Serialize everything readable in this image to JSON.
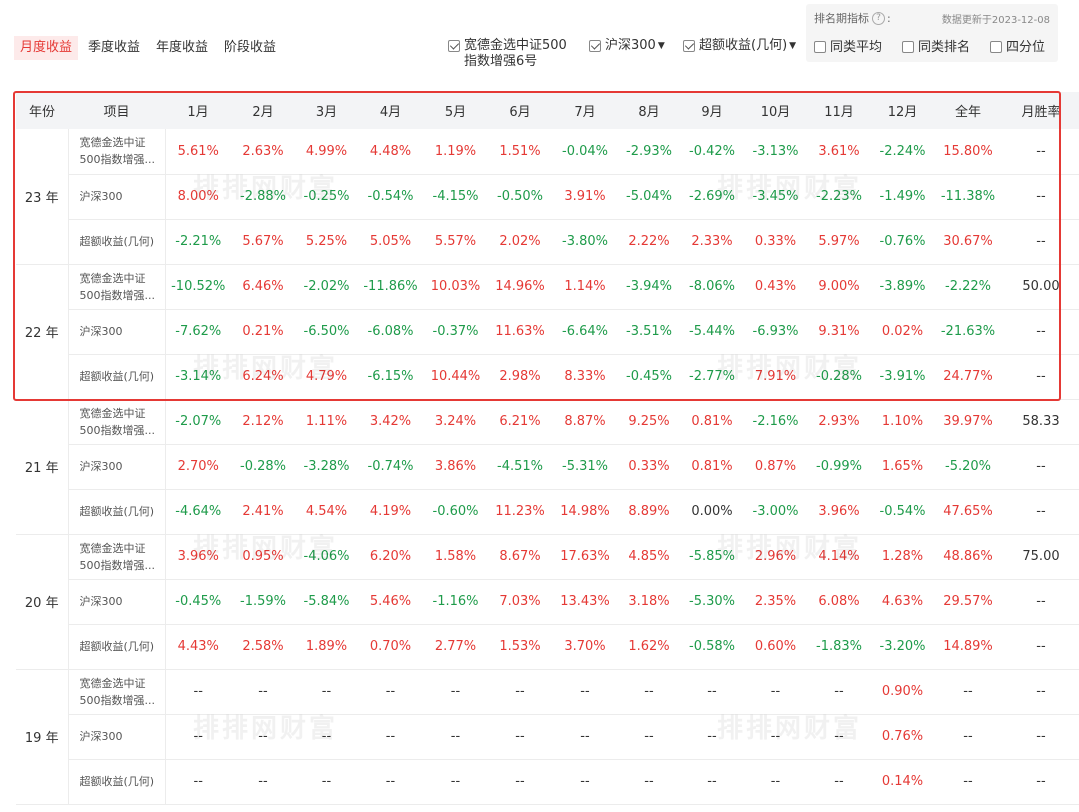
{
  "tabs": [
    {
      "label": "月度收益",
      "active": true
    },
    {
      "label": "季度收益",
      "active": false
    },
    {
      "label": "年度收益",
      "active": false
    },
    {
      "label": "阶段收益",
      "active": false
    }
  ],
  "series_toggles": [
    {
      "label_line1": "宽德金选中证500",
      "label_line2": "指数增强6号",
      "checked": true
    },
    {
      "label": "沪深300",
      "checked": true,
      "has_dropdown": true
    },
    {
      "label": "超额收益(几何)",
      "checked": true,
      "has_dropdown": true
    }
  ],
  "ranking": {
    "title": "排名期指标",
    "help_icon": "question-circle-icon",
    "update_text": "数据更新于2023-12-08",
    "options": [
      {
        "label": "同类平均",
        "checked": false
      },
      {
        "label": "同类排名",
        "checked": false
      },
      {
        "label": "四分位",
        "checked": false
      }
    ]
  },
  "table": {
    "headers": [
      "年份",
      "项目",
      "1月",
      "2月",
      "3月",
      "4月",
      "5月",
      "6月",
      "7月",
      "8月",
      "9月",
      "10月",
      "11月",
      "12月",
      "全年",
      "月胜率"
    ],
    "years": [
      {
        "year": "23 年",
        "rows": [
          {
            "item": "宽德金选中证500指数增强...",
            "values": [
              "5.61%",
              "2.63%",
              "4.99%",
              "4.48%",
              "1.19%",
              "1.51%",
              "-0.04%",
              "-2.93%",
              "-0.42%",
              "-3.13%",
              "3.61%",
              "-2.24%",
              "15.80%",
              "--"
            ]
          },
          {
            "item": "沪深300",
            "values": [
              "8.00%",
              "-2.88%",
              "-0.25%",
              "-0.54%",
              "-4.15%",
              "-0.50%",
              "3.91%",
              "-5.04%",
              "-2.69%",
              "-3.45%",
              "-2.23%",
              "-1.49%",
              "-11.38%",
              "--"
            ]
          },
          {
            "item": "超额收益(几何)",
            "values": [
              "-2.21%",
              "5.67%",
              "5.25%",
              "5.05%",
              "5.57%",
              "2.02%",
              "-3.80%",
              "2.22%",
              "2.33%",
              "0.33%",
              "5.97%",
              "-0.76%",
              "30.67%",
              "--"
            ]
          }
        ]
      },
      {
        "year": "22 年",
        "rows": [
          {
            "item": "宽德金选中证500指数增强...",
            "values": [
              "-10.52%",
              "6.46%",
              "-2.02%",
              "-11.86%",
              "10.03%",
              "14.96%",
              "1.14%",
              "-3.94%",
              "-8.06%",
              "0.43%",
              "9.00%",
              "-3.89%",
              "-2.22%",
              "50.00"
            ]
          },
          {
            "item": "沪深300",
            "values": [
              "-7.62%",
              "0.21%",
              "-6.50%",
              "-6.08%",
              "-0.37%",
              "11.63%",
              "-6.64%",
              "-3.51%",
              "-5.44%",
              "-6.93%",
              "9.31%",
              "0.02%",
              "-21.63%",
              "--"
            ]
          },
          {
            "item": "超额收益(几何)",
            "values": [
              "-3.14%",
              "6.24%",
              "4.79%",
              "-6.15%",
              "10.44%",
              "2.98%",
              "8.33%",
              "-0.45%",
              "-2.77%",
              "7.91%",
              "-0.28%",
              "-3.91%",
              "24.77%",
              "--"
            ]
          }
        ]
      },
      {
        "year": "21 年",
        "rows": [
          {
            "item": "宽德金选中证500指数增强...",
            "values": [
              "-2.07%",
              "2.12%",
              "1.11%",
              "3.42%",
              "3.24%",
              "6.21%",
              "8.87%",
              "9.25%",
              "0.81%",
              "-2.16%",
              "2.93%",
              "1.10%",
              "39.97%",
              "58.33"
            ]
          },
          {
            "item": "沪深300",
            "values": [
              "2.70%",
              "-0.28%",
              "-3.28%",
              "-0.74%",
              "3.86%",
              "-4.51%",
              "-5.31%",
              "0.33%",
              "0.81%",
              "0.87%",
              "-0.99%",
              "1.65%",
              "-5.20%",
              "--"
            ]
          },
          {
            "item": "超额收益(几何)",
            "values": [
              "-4.64%",
              "2.41%",
              "4.54%",
              "4.19%",
              "-0.60%",
              "11.23%",
              "14.98%",
              "8.89%",
              "0.00%",
              "-3.00%",
              "3.96%",
              "-0.54%",
              "47.65%",
              "--"
            ]
          }
        ]
      },
      {
        "year": "20 年",
        "rows": [
          {
            "item": "宽德金选中证500指数增强...",
            "values": [
              "3.96%",
              "0.95%",
              "-4.06%",
              "6.20%",
              "1.58%",
              "8.67%",
              "17.63%",
              "4.85%",
              "-5.85%",
              "2.96%",
              "4.14%",
              "1.28%",
              "48.86%",
              "75.00"
            ]
          },
          {
            "item": "沪深300",
            "values": [
              "-0.45%",
              "-1.59%",
              "-5.84%",
              "5.46%",
              "-1.16%",
              "7.03%",
              "13.43%",
              "3.18%",
              "-5.30%",
              "2.35%",
              "6.08%",
              "4.63%",
              "29.57%",
              "--"
            ]
          },
          {
            "item": "超额收益(几何)",
            "values": [
              "4.43%",
              "2.58%",
              "1.89%",
              "0.70%",
              "2.77%",
              "1.53%",
              "3.70%",
              "1.62%",
              "-0.58%",
              "0.60%",
              "-1.83%",
              "-3.20%",
              "14.89%",
              "--"
            ]
          }
        ]
      },
      {
        "year": "19 年",
        "rows": [
          {
            "item": "宽德金选中证500指数增强...",
            "values": [
              "--",
              "--",
              "--",
              "--",
              "--",
              "--",
              "--",
              "--",
              "--",
              "--",
              "--",
              "0.90%",
              "--",
              "--"
            ]
          },
          {
            "item": "沪深300",
            "values": [
              "--",
              "--",
              "--",
              "--",
              "--",
              "--",
              "--",
              "--",
              "--",
              "--",
              "--",
              "0.76%",
              "--",
              "--"
            ]
          },
          {
            "item": "超额收益(几何)",
            "values": [
              "--",
              "--",
              "--",
              "--",
              "--",
              "--",
              "--",
              "--",
              "--",
              "--",
              "--",
              "0.14%",
              "--",
              "--"
            ]
          }
        ]
      }
    ]
  },
  "watermark": "排排网财富",
  "colors": {
    "positive": "#e53935",
    "negative": "#1e9b4a",
    "accent": "#e53935",
    "highlight_border": "#e53935"
  }
}
